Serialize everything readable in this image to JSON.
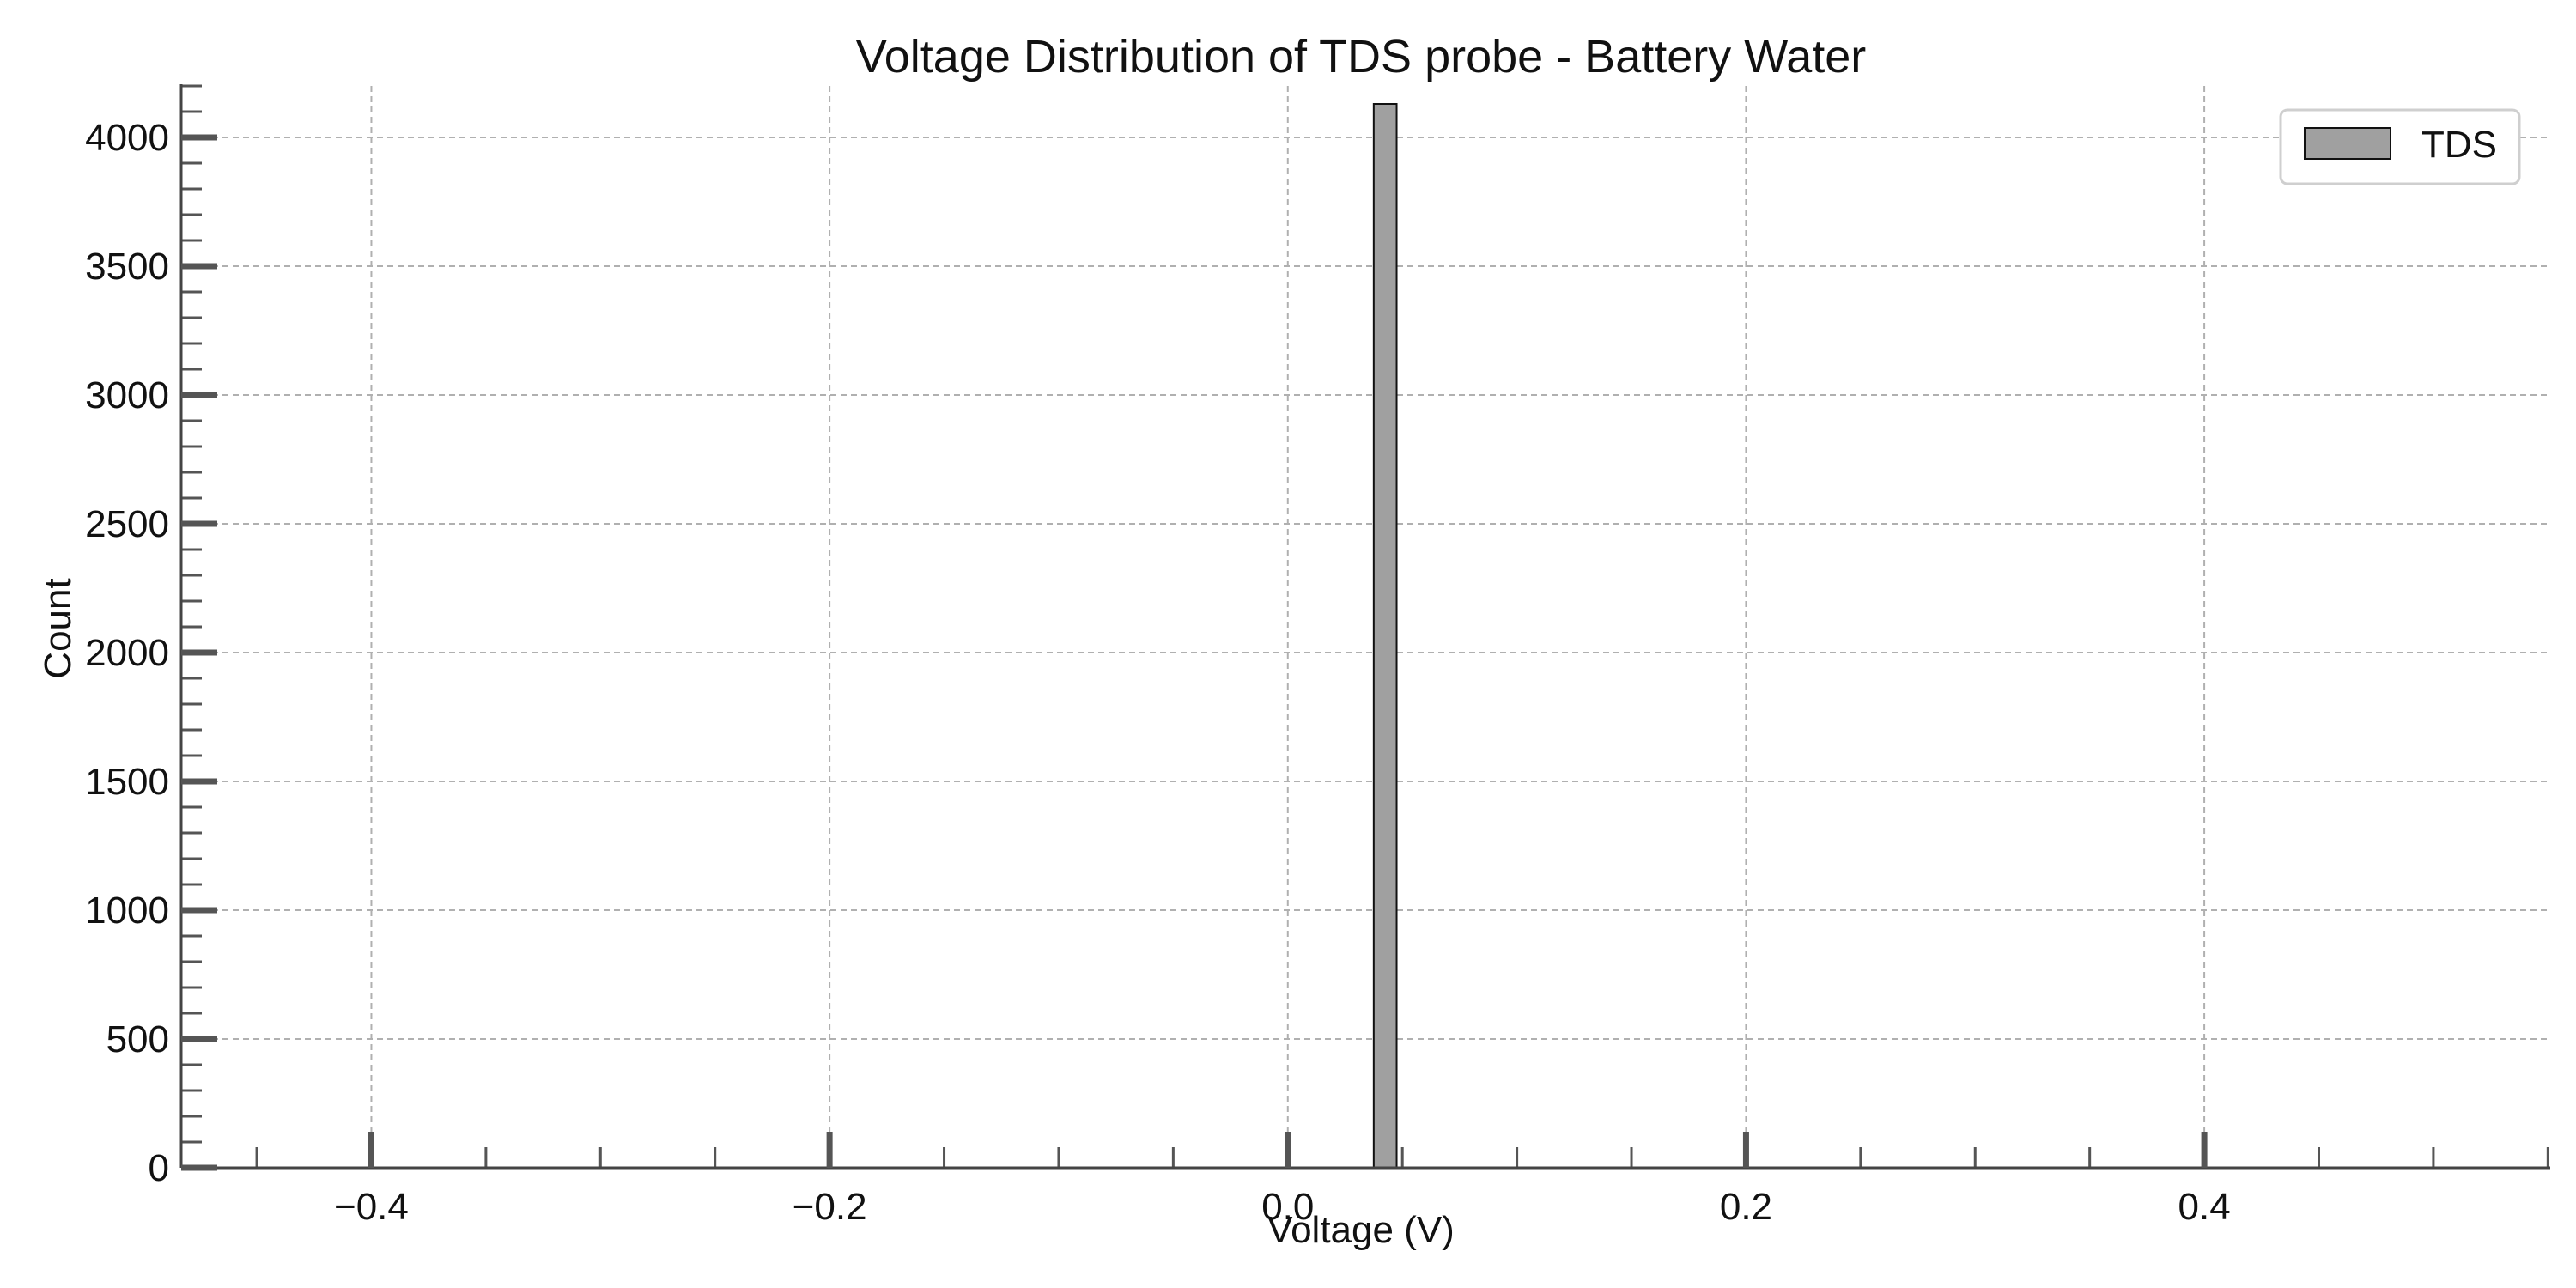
{
  "chart_data": {
    "type": "bar",
    "title": "Voltage Distribution of TDS probe - Battery Water",
    "xlabel": "Voltage (V)",
    "ylabel": "Count",
    "xlim": [
      -0.483,
      0.551
    ],
    "ylim": [
      0,
      4200
    ],
    "x_ticks": [
      -0.4,
      -0.2,
      0.0,
      0.2,
      0.4
    ],
    "x_tick_labels": [
      "−0.4",
      "−0.2",
      "0.0",
      "0.2",
      "0.4"
    ],
    "x_minor_step": 0.05,
    "y_ticks": [
      0,
      500,
      1000,
      1500,
      2000,
      2500,
      3000,
      3500,
      4000
    ],
    "y_tick_labels": [
      "0",
      "500",
      "1000",
      "1500",
      "2000",
      "2500",
      "3000",
      "3500",
      "4000"
    ],
    "y_minor_step": 100,
    "grid": true,
    "legend_position": "top-right",
    "series": [
      {
        "name": "TDS",
        "color": "#a0a0a0",
        "edgecolor": "#111111",
        "bins": [
          {
            "x0": 0.0375,
            "x1": 0.0475,
            "count": 4130
          }
        ]
      }
    ]
  }
}
